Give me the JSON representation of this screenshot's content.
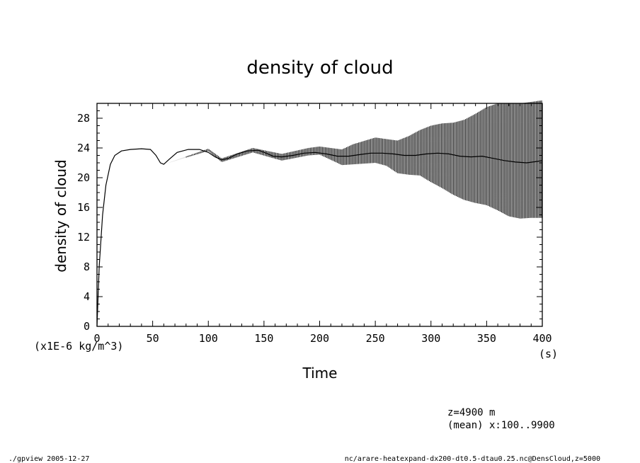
{
  "chart_data": {
    "type": "line",
    "title": "density of cloud",
    "xlabel": "Time",
    "ylabel": "density of cloud",
    "xunit": "(s)",
    "yunit": "(x1E-6 kg/m^3)",
    "xlim": [
      0,
      400
    ],
    "ylim": [
      0,
      30
    ],
    "xticks": [
      0,
      50,
      100,
      150,
      200,
      250,
      300,
      350,
      400
    ],
    "yticks": [
      0,
      4,
      8,
      12,
      16,
      20,
      24,
      28
    ],
    "grid": false,
    "series": [
      {
        "mean_curve": [
          [
            0,
            0
          ],
          [
            2,
            8
          ],
          [
            5,
            15
          ],
          [
            8,
            19
          ],
          [
            12,
            21.8
          ],
          [
            16,
            23
          ],
          [
            22,
            23.6
          ],
          [
            30,
            23.8
          ],
          [
            40,
            23.9
          ],
          [
            48,
            23.8
          ],
          [
            53,
            23
          ],
          [
            57,
            22
          ],
          [
            60,
            21.8
          ],
          [
            65,
            22.5
          ],
          [
            72,
            23.4
          ],
          [
            82,
            23.8
          ],
          [
            92,
            23.8
          ],
          [
            100,
            23.4
          ],
          [
            106,
            22.8
          ],
          [
            112,
            22.4
          ],
          [
            118,
            22.6
          ],
          [
            126,
            23.2
          ],
          [
            135,
            23.6
          ],
          [
            145,
            23.7
          ],
          [
            152,
            23.3
          ],
          [
            158,
            22.9
          ],
          [
            166,
            22.8
          ],
          [
            176,
            23.0
          ],
          [
            186,
            23.3
          ],
          [
            196,
            23.4
          ],
          [
            206,
            23.2
          ],
          [
            216,
            22.9
          ],
          [
            226,
            22.9
          ],
          [
            236,
            23.1
          ],
          [
            246,
            23.3
          ],
          [
            256,
            23.3
          ],
          [
            266,
            23.2
          ],
          [
            276,
            23.0
          ],
          [
            286,
            23.0
          ],
          [
            296,
            23.2
          ],
          [
            306,
            23.3
          ],
          [
            316,
            23.2
          ],
          [
            326,
            22.9
          ],
          [
            336,
            22.8
          ],
          [
            346,
            22.9
          ],
          [
            356,
            22.6
          ],
          [
            366,
            22.3
          ],
          [
            376,
            22.1
          ],
          [
            386,
            22.0
          ],
          [
            396,
            22.2
          ],
          [
            400,
            22.3
          ]
        ],
        "oscillation_envelope": [
          [
            0,
            0,
            0
          ],
          [
            60,
            21.8,
            21.8
          ],
          [
            100,
            23.6,
            23.9
          ],
          [
            112,
            22.1,
            22.6
          ],
          [
            140,
            23.4,
            24.0
          ],
          [
            166,
            22.3,
            23.2
          ],
          [
            190,
            23.0,
            24.0
          ],
          [
            200,
            23.1,
            24.2
          ],
          [
            220,
            21.7,
            23.8
          ],
          [
            230,
            21.8,
            24.5
          ],
          [
            250,
            22.0,
            25.4
          ],
          [
            260,
            21.6,
            25.2
          ],
          [
            270,
            20.6,
            25.0
          ],
          [
            280,
            20.4,
            25.6
          ],
          [
            290,
            20.3,
            26.4
          ],
          [
            300,
            19.4,
            27.0
          ],
          [
            310,
            18.6,
            27.3
          ],
          [
            320,
            17.7,
            27.4
          ],
          [
            330,
            17.0,
            27.8
          ],
          [
            340,
            16.6,
            28.6
          ],
          [
            350,
            16.3,
            29.5
          ],
          [
            360,
            15.6,
            30.0
          ],
          [
            370,
            14.8,
            30.0
          ],
          [
            380,
            14.5,
            30.0
          ],
          [
            390,
            14.6,
            30.2
          ],
          [
            400,
            14.6,
            30.4
          ]
        ]
      }
    ]
  },
  "annotations": {
    "z_level": "z=4900 m",
    "averaging": "(mean) x:100..9900"
  },
  "footer": {
    "left": "./gpview  2005-12-27",
    "right": "nc/arare-heatexpand-dx200-dt0.5-dtau0.25.nc@DensCloud,z=5000"
  }
}
